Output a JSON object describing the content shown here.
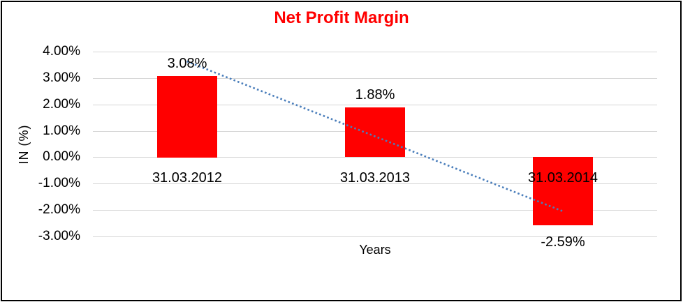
{
  "chart_data": {
    "type": "bar",
    "title": "Net Profit Margin",
    "title_color": "#ff0000",
    "categories": [
      "31.03.2012",
      "31.03.2013",
      "31.03.2014"
    ],
    "values": [
      3.08,
      1.88,
      -2.59
    ],
    "data_labels": [
      "3.08%",
      "1.88%",
      "-2.59%"
    ],
    "xlabel": "Years",
    "ylabel": "IN (%)",
    "ylim": [
      -3,
      4
    ],
    "yticks": [
      4,
      3,
      2,
      1,
      0,
      -1,
      -2,
      -3
    ],
    "ytick_labels": [
      "4.00%",
      "3.00%",
      "2.00%",
      "1.00%",
      "0.00%",
      "-1.00%",
      "-2.00%",
      "-3.00%"
    ],
    "bar_color": "#ff0000",
    "gridline_color": "#d6d6d6",
    "grid": true,
    "legend": false,
    "trendline": {
      "type": "linear",
      "style": "dotted",
      "color": "#4a7ebb",
      "start_value": 3.63,
      "end_value": -2.05
    }
  }
}
